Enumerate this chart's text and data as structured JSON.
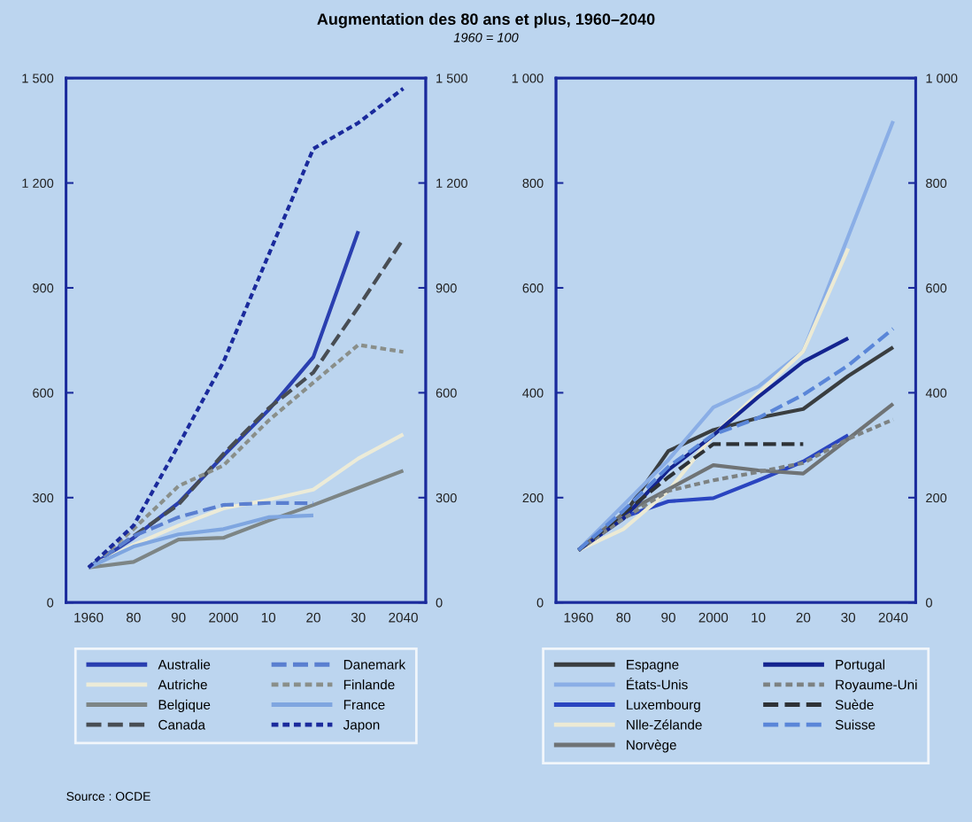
{
  "chart_data": [
    {
      "type": "line",
      "title": "Augmentation des 80 ans et plus, 1960–2040",
      "subtitle": "1960 = 100",
      "categories": [
        "1960",
        "80",
        "90",
        "2000",
        "10",
        "20",
        "30",
        "2040"
      ],
      "ylim": [
        0,
        1500
      ],
      "yticks": [
        0,
        300,
        600,
        900,
        {
          "value": 1200,
          "label": "1 200"
        },
        {
          "value": 1500,
          "label": "1 500"
        }
      ],
      "y2lim": [
        0,
        1500
      ],
      "y2ticks": [
        0,
        300,
        600,
        900,
        {
          "value": 1200,
          "label": "1 200"
        },
        {
          "value": 1500,
          "label": "1 500"
        }
      ],
      "grid": false,
      "legend": "bottom",
      "marker": "none",
      "annotations": [
        "Source : OCDE"
      ],
      "series": [
        {
          "name": "Australie",
          "color": "#2a3fb0",
          "line_style": "solid",
          "values": [
            100,
            185,
            285,
            420,
            550,
            702,
            1062,
            null
          ]
        },
        {
          "name": "Autriche",
          "color": "#ecebd8",
          "line_style": "solid",
          "values": [
            100,
            165,
            220,
            269,
            294,
            323,
            412,
            481
          ]
        },
        {
          "name": "Belgique",
          "color": "#7d8585",
          "line_style": "solid",
          "values": [
            100,
            116,
            180,
            185,
            234,
            279,
            328,
            377
          ]
        },
        {
          "name": "Canada",
          "color": "#484d53",
          "line_style": "dashed",
          "values": [
            100,
            190,
            280,
            425,
            555,
            658,
            845,
            1040
          ]
        },
        {
          "name": "Danemark",
          "color": "#5a7fd0",
          "line_style": "dashed",
          "values": [
            100,
            190,
            244,
            279,
            285,
            284,
            null,
            null
          ]
        },
        {
          "name": "Finlande",
          "color": "#8a8f8a",
          "line_style": "dotted",
          "values": [
            100,
            210,
            333,
            392,
            520,
            629,
            737,
            717
          ]
        },
        {
          "name": "France",
          "color": "#7fa6e0",
          "line_style": "solid",
          "values": [
            100,
            160,
            195,
            210,
            244,
            249,
            null,
            null
          ]
        },
        {
          "name": "Japon",
          "color": "#1a2a9c",
          "line_style": "dotted",
          "values": [
            100,
            220,
            450,
            688,
            993,
            1298,
            1372,
            1470
          ]
        }
      ]
    },
    {
      "type": "line",
      "categories": [
        "1960",
        "80",
        "90",
        "2000",
        "10",
        "20",
        "30",
        "2040"
      ],
      "ylim": [
        0,
        1000
      ],
      "yticks": [
        0,
        200,
        400,
        600,
        800,
        {
          "value": 1000,
          "label": "1 000"
        }
      ],
      "y2lim": [
        0,
        1000
      ],
      "y2ticks": [
        0,
        200,
        400,
        600,
        800,
        {
          "value": 1000,
          "label": "1 000"
        }
      ],
      "grid": false,
      "legend": "bottom",
      "marker": "none",
      "series": [
        {
          "name": "Espagne",
          "color": "#3a3e40",
          "line_style": "solid",
          "values": [
            100,
            166,
            289,
            329,
            352,
            369,
            432,
            487
          ]
        },
        {
          "name": "États-Unis",
          "color": "#8aaee6",
          "line_style": "solid",
          "values": [
            100,
            186,
            272,
            372,
            412,
            479,
            698,
            918
          ]
        },
        {
          "name": "Luxembourg",
          "color": "#2a45c0",
          "line_style": "solid",
          "values": [
            100,
            163,
            193,
            199,
            233,
            269,
            319,
            null
          ]
        },
        {
          "name": "Nlle-Zélande",
          "color": "#ecead4",
          "line_style": "solid",
          "values": [
            100,
            140,
            213,
            319,
            399,
            479,
            675,
            null
          ]
        },
        {
          "name": "Norvège",
          "color": "#6f7375",
          "line_style": "solid",
          "values": [
            100,
            170,
            216,
            262,
            252,
            246,
            312,
            379
          ]
        },
        {
          "name": "Portugal",
          "color": "#14248f",
          "line_style": "solid",
          "values": [
            100,
            160,
            253,
            319,
            392,
            459,
            504,
            null
          ]
        },
        {
          "name": "Royaume-Uni",
          "color": "#7d8282",
          "line_style": "dotted",
          "values": [
            100,
            160,
            213,
            233,
            249,
            266,
            312,
            349
          ]
        },
        {
          "name": "Suède",
          "color": "#2e3236",
          "line_style": "dashed",
          "values": [
            100,
            170,
            239,
            302,
            302,
            302,
            null,
            null
          ]
        },
        {
          "name": "Suisse",
          "color": "#5a86d8",
          "line_style": "dashed",
          "values": [
            100,
            175,
            259,
            320,
            352,
            396,
            452,
            522
          ]
        }
      ]
    }
  ]
}
